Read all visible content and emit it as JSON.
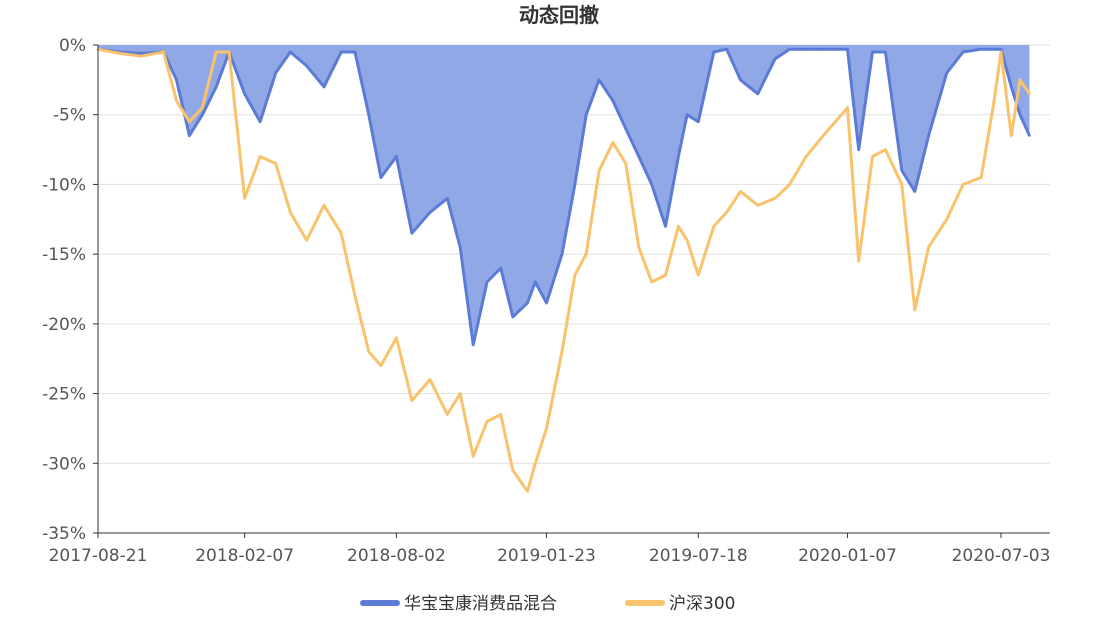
{
  "chart_data": {
    "type": "area",
    "title": "动态回撤",
    "xlabel": "",
    "ylabel": "",
    "x_ticks": [
      "2017-08-21",
      "2018-02-07",
      "2018-08-02",
      "2019-01-23",
      "2019-07-18",
      "2020-01-07",
      "2020-07-03"
    ],
    "y_ticks": [
      "0%",
      "-5%",
      "-10%",
      "-15%",
      "-20%",
      "-25%",
      "-30%",
      "-35%"
    ],
    "ylim": [
      -35,
      0
    ],
    "grid": true,
    "legend_position": "bottom-center",
    "x": [
      "2017-08-21",
      "2017-09-15",
      "2017-10-10",
      "2017-11-05",
      "2017-11-20",
      "2017-12-05",
      "2017-12-20",
      "2018-01-05",
      "2018-01-20",
      "2018-02-07",
      "2018-02-25",
      "2018-03-15",
      "2018-04-01",
      "2018-04-20",
      "2018-05-10",
      "2018-05-30",
      "2018-06-15",
      "2018-07-01",
      "2018-07-15",
      "2018-08-02",
      "2018-08-20",
      "2018-09-10",
      "2018-09-30",
      "2018-10-15",
      "2018-10-30",
      "2018-11-15",
      "2018-12-01",
      "2018-12-15",
      "2019-01-01",
      "2019-01-10",
      "2019-01-23",
      "2019-02-10",
      "2019-02-25",
      "2019-03-10",
      "2019-03-25",
      "2019-04-10",
      "2019-04-25",
      "2019-05-10",
      "2019-05-25",
      "2019-06-10",
      "2019-06-25",
      "2019-07-05",
      "2019-07-18",
      "2019-08-05",
      "2019-08-20",
      "2019-09-05",
      "2019-09-25",
      "2019-10-15",
      "2019-11-01",
      "2019-11-20",
      "2019-12-10",
      "2020-01-07",
      "2020-01-20",
      "2020-02-05",
      "2020-02-20",
      "2020-03-10",
      "2020-03-25",
      "2020-04-10",
      "2020-05-01",
      "2020-05-20",
      "2020-06-10",
      "2020-06-25",
      "2020-07-03",
      "2020-07-15",
      "2020-07-25",
      "2020-08-05"
    ],
    "series": [
      {
        "name": "华宝宝康消费品混合",
        "color": "#5b7bd5",
        "fill": "#91a8e6",
        "values": [
          -0.3,
          -0.5,
          -0.6,
          -0.5,
          -2.5,
          -6.5,
          -5.0,
          -3.0,
          -0.5,
          -3.5,
          -5.5,
          -2.0,
          -0.5,
          -1.5,
          -3.0,
          -0.5,
          -0.5,
          -5.0,
          -9.5,
          -8.0,
          -13.5,
          -12.0,
          -11.0,
          -14.5,
          -21.5,
          -17.0,
          -16.0,
          -19.5,
          -18.5,
          -17.0,
          -18.5,
          -15.0,
          -10.0,
          -5.0,
          -2.5,
          -4.0,
          -6.0,
          -8.0,
          -10.0,
          -13.0,
          -8.0,
          -5.0,
          -5.5,
          -0.5,
          -0.3,
          -2.5,
          -3.5,
          -1.0,
          -0.3,
          -0.3,
          -0.3,
          -0.3,
          -7.5,
          -0.5,
          -0.5,
          -9.0,
          -10.5,
          -6.5,
          -2.0,
          -0.5,
          -0.3,
          -0.3,
          -0.3,
          -3.0,
          -5.0,
          -6.5
        ]
      },
      {
        "name": "沪深300",
        "color": "#f9c26c",
        "values": [
          -0.3,
          -0.6,
          -0.8,
          -0.5,
          -4.0,
          -5.5,
          -4.5,
          -0.5,
          -0.5,
          -11.0,
          -8.0,
          -8.5,
          -12.0,
          -14.0,
          -11.5,
          -13.5,
          -18.0,
          -22.0,
          -23.0,
          -21.0,
          -25.5,
          -24.0,
          -26.5,
          -25.0,
          -29.5,
          -27.0,
          -26.5,
          -30.5,
          -32.0,
          -30.0,
          -27.5,
          -22.0,
          -16.5,
          -15.0,
          -9.0,
          -7.0,
          -8.5,
          -14.5,
          -17.0,
          -16.5,
          -13.0,
          -14.0,
          -16.5,
          -13.0,
          -12.0,
          -10.5,
          -11.5,
          -11.0,
          -10.0,
          -8.0,
          -6.5,
          -4.5,
          -15.5,
          -8.0,
          -7.5,
          -10.0,
          -19.0,
          -14.5,
          -12.5,
          -10.0,
          -9.5,
          -4.0,
          -0.5,
          -6.5,
          -2.5,
          -3.5
        ]
      }
    ]
  }
}
